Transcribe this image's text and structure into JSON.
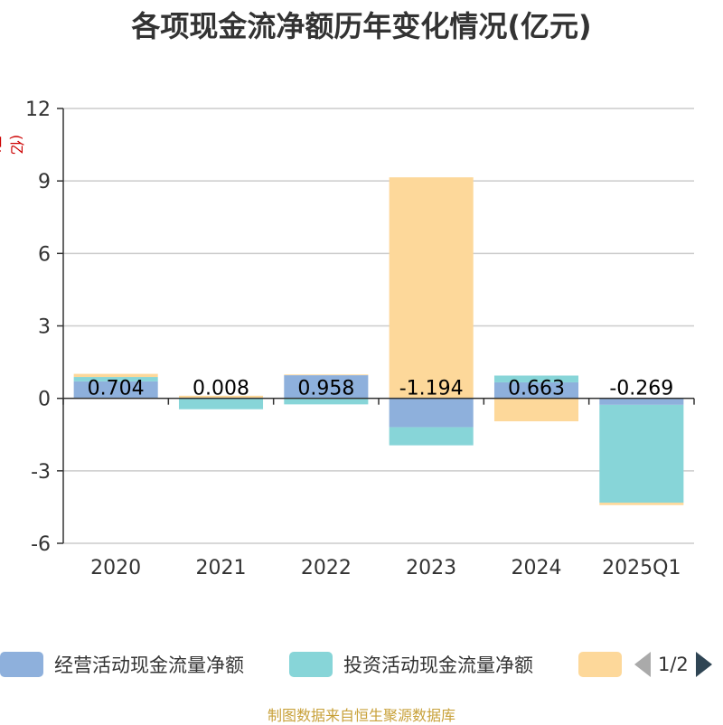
{
  "chart_data": {
    "type": "bar",
    "stacked": true,
    "title": "各项现金流净额历年变化情况(亿元)",
    "ylabel": "(亿元)",
    "categories": [
      "2020",
      "2021",
      "2022",
      "2023",
      "2024",
      "2025Q1"
    ],
    "ylim": [
      -6,
      12
    ],
    "yticks": [
      12,
      9,
      6,
      3,
      0,
      -3,
      -6
    ],
    "grid": true,
    "legend_position": "bottom",
    "series": [
      {
        "name": "经营活动现金流量净额",
        "color": "#8eb0dc",
        "values": [
          0.704,
          0.008,
          0.958,
          -1.194,
          0.663,
          -0.269
        ]
      },
      {
        "name": "投资活动现金流量净额",
        "color": "#87d5d8",
        "values": [
          0.18,
          -0.45,
          -0.25,
          -0.75,
          0.28,
          -4.05
        ]
      },
      {
        "name": "",
        "color": "#fdd89a",
        "values": [
          0.13,
          0.1,
          0.03,
          9.15,
          -0.95,
          -0.1
        ]
      }
    ],
    "data_labels": [
      "0.704",
      "0.008",
      "0.958",
      "-1.194",
      "0.663",
      "-0.269"
    ]
  },
  "legend": {
    "page": "1/2"
  },
  "source": "制图数据来自恒生聚源数据库",
  "colors": {
    "axis": "#333333",
    "grid": "#cccccc",
    "unit_label": "#cc0000"
  }
}
